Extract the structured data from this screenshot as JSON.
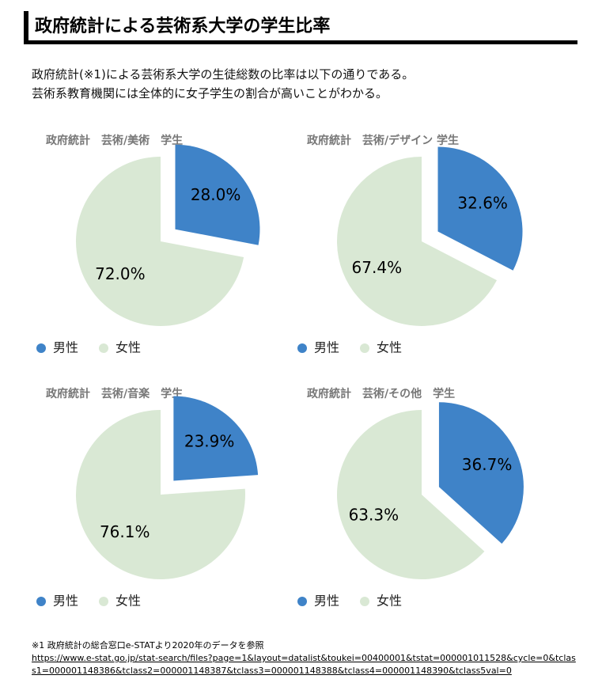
{
  "header": {
    "title": "政府統計による芸術系大学の学生比率"
  },
  "intro": [
    "政府統計(※1)による芸術系大学の生徒総数の比率は以下の通りである。",
    "芸術系教育機関には全体的に女子学生の割合が高いことがわかる。"
  ],
  "chart_data": [
    {
      "type": "pie",
      "title": "政府統計　芸術/美術　学生",
      "categories": [
        "男性",
        "女性"
      ],
      "values": [
        28.0,
        72.0
      ],
      "value_labels": [
        "28.0%",
        "72.0%"
      ],
      "colors": [
        "#3f83c8",
        "#d9e8d4"
      ]
    },
    {
      "type": "pie",
      "title": "政府統計　芸術/デザイン 学生",
      "categories": [
        "男性",
        "女性"
      ],
      "values": [
        32.6,
        67.4
      ],
      "value_labels": [
        "32.6%",
        "67.4%"
      ],
      "colors": [
        "#3f83c8",
        "#d9e8d4"
      ]
    },
    {
      "type": "pie",
      "title": "政府統計　芸術/音楽　学生",
      "categories": [
        "男性",
        "女性"
      ],
      "values": [
        23.9,
        76.1
      ],
      "value_labels": [
        "23.9%",
        "76.1%"
      ],
      "colors": [
        "#3f83c8",
        "#d9e8d4"
      ]
    },
    {
      "type": "pie",
      "title": "政府統計　芸術/その他　学生",
      "categories": [
        "男性",
        "女性"
      ],
      "values": [
        36.7,
        63.3
      ],
      "value_labels": [
        "36.7%",
        "63.3%"
      ],
      "colors": [
        "#3f83c8",
        "#d9e8d4"
      ]
    }
  ],
  "footnote": {
    "text": "※1  政府統計の総合窓口e-STATより2020年のデータを参照",
    "url": "https://www.e-stat.go.jp/stat-search/files?page=1&layout=datalist&toukei=00400001&tstat=000001011528&cycle=0&tclass1=000001148386&tclass2=000001148387&tclass3=000001148388&tclass4=000001148390&tclass5val=0"
  }
}
